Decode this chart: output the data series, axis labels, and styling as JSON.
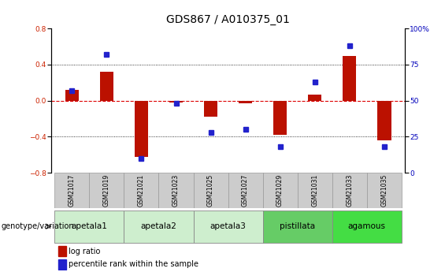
{
  "title": "GDS867 / A010375_01",
  "samples": [
    "GSM21017",
    "GSM21019",
    "GSM21021",
    "GSM21023",
    "GSM21025",
    "GSM21027",
    "GSM21029",
    "GSM21031",
    "GSM21033",
    "GSM21035"
  ],
  "log_ratio": [
    0.12,
    0.32,
    -0.62,
    -0.02,
    -0.18,
    -0.03,
    -0.38,
    0.07,
    0.5,
    -0.44
  ],
  "percentile_rank": [
    57,
    82,
    10,
    48,
    28,
    30,
    18,
    63,
    88,
    18
  ],
  "ylim_left": [
    -0.8,
    0.8
  ],
  "ylim_right": [
    0,
    100
  ],
  "yticks_left": [
    -0.8,
    -0.4,
    0.0,
    0.4,
    0.8
  ],
  "yticks_right": [
    0,
    25,
    50,
    75,
    100
  ],
  "group_info": [
    {
      "label": "apetala1",
      "start": 0,
      "end": 1,
      "color": "#ceeece"
    },
    {
      "label": "apetala2",
      "start": 2,
      "end": 3,
      "color": "#ceeece"
    },
    {
      "label": "apetala3",
      "start": 4,
      "end": 5,
      "color": "#ceeece"
    },
    {
      "label": "pistillata",
      "start": 6,
      "end": 7,
      "color": "#66cc66"
    },
    {
      "label": "agamous",
      "start": 8,
      "end": 9,
      "color": "#44dd44"
    }
  ],
  "bar_color": "#bb1100",
  "dot_color": "#2222cc",
  "zero_line_color": "#dd0000",
  "grid_color": "#000000",
  "bg_color": "#ffffff",
  "sample_cell_color": "#cccccc",
  "title_fontsize": 10,
  "tick_fontsize": 6.5,
  "sample_fontsize": 5.5,
  "group_fontsize": 7.5,
  "legend_fontsize": 7,
  "geno_label_fontsize": 7
}
